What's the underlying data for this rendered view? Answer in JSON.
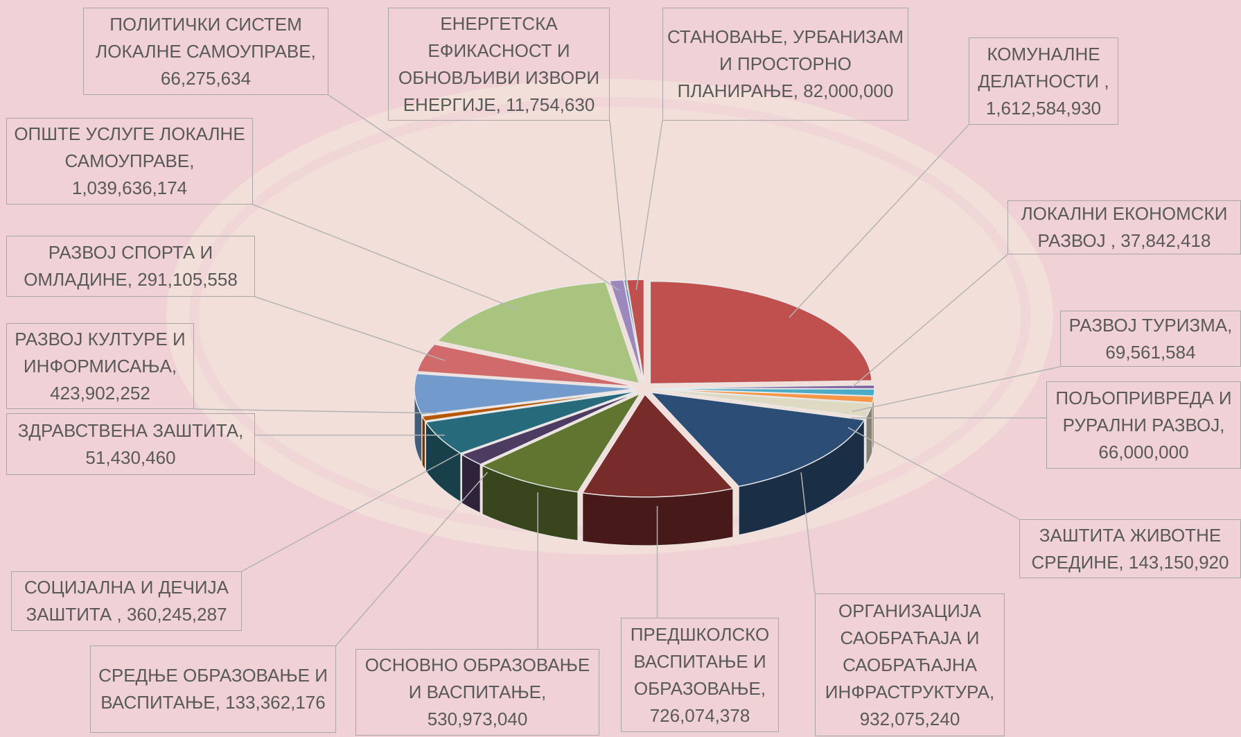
{
  "chart_data": {
    "type": "pie",
    "categories": [
      "КОМУНАЛНЕ ДЕЛАТНОСТИ ,",
      "ЛОКАЛНИ ЕКОНОМСКИ РАЗВОЈ ,",
      "РАЗВОЈ ТУРИЗМА,",
      "ПОЉОПРИВРЕДА И РУРАЛНИ РАЗВОЈ,",
      "ЗАШТИТА ЖИВОТНЕ СРЕДИНЕ,",
      "ОРГАНИЗАЦИЈА САОБРАЋАЈА И САОБРАЋАЈНА ИНФРАСТРУКТУРА,",
      "ПРЕДШКОЛСКО ВАСПИТАЊЕ И ОБРАЗОВАЊЕ,",
      "ОСНОВНО ОБРАЗОВАЊЕ И ВАСПИТАЊЕ,",
      "СРЕДЊЕ ОБРАЗОВАЊЕ И ВАСПИТАЊЕ,",
      "СОЦИЈАЛНА И ДЕЧИЈА ЗАШТИТА ,",
      "ЗДРАВСТВЕНА ЗАШТИТА,",
      "РАЗВОЈ КУЛТУРЕ И ИНФОРМИСАЊА,",
      "РАЗВОЈ СПОРТА И ОМЛАДИНЕ,",
      "ОПШТЕ УСЛУГЕ ЛОКАЛНЕ САМОУПРАВЕ,",
      "ПОЛИТИЧКИ СИСТЕМ ЛОКАЛНЕ САМОУПРАВЕ,",
      "ЕНЕРГЕТСКА ЕФИКАСНОСТ И ОБНОВЉИВИ ИЗВОРИ ЕНЕРГИЈЕ,",
      "СТАНОВАЊЕ, УРБАНИЗАМ И ПРОСТОРНО ПЛАНИРАЊЕ,"
    ],
    "values": [
      1612584930,
      37842418,
      69561584,
      66000000,
      143150920,
      932075240,
      726074378,
      530973040,
      133362176,
      360245287,
      51430460,
      423902252,
      291105558,
      1039636174,
      66275634,
      11754630,
      82000000
    ],
    "value_labels": [
      "1,612,584,930",
      "37,842,418",
      "69,561,584",
      "66,000,000",
      "143,150,920",
      "932,075,240",
      "726,074,378",
      "530,973,040",
      "133,362,176",
      "360,245,287",
      "51,430,460",
      "423,902,252",
      "291,105,558",
      "1,039,636,174",
      "66,275,634",
      "11,754,630",
      "82,000,000"
    ],
    "colors": [
      "#c0504d",
      "#8064a2",
      "#4bacc6",
      "#f79646",
      "#ddd9c3",
      "#2c4d75",
      "#772c2a",
      "#5f7530",
      "#4d3b62",
      "#276a7c",
      "#b65708",
      "#729aca",
      "#d16b6b",
      "#a9c47f",
      "#9c88bc",
      "#4f81bd",
      "#c0504d"
    ]
  }
}
